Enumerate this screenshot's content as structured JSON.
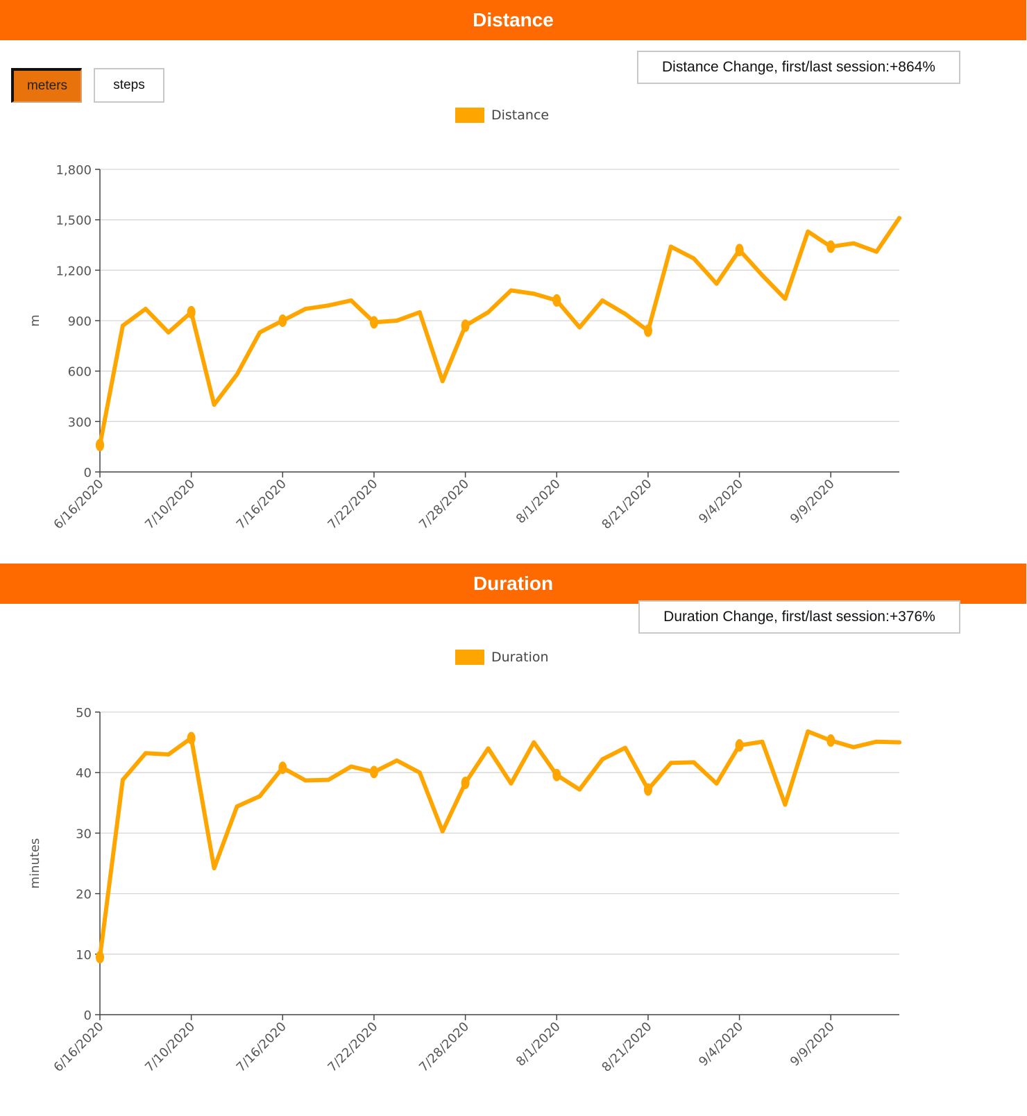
{
  "colors": {
    "header": "#ff6a00",
    "line": "#ffa500",
    "button_active": "#e8720c",
    "grid": "#d6d6d6",
    "axis": "#444444"
  },
  "distance": {
    "header": "Distance",
    "change_text": "Distance Change, first/last session:+864%",
    "unit_buttons": [
      {
        "label": "meters",
        "active": true
      },
      {
        "label": "steps",
        "active": false
      }
    ]
  },
  "duration": {
    "header": "Duration",
    "change_text": "Duration Change, first/last session:+376%"
  },
  "chart_data": [
    {
      "type": "line",
      "legend": "Distance",
      "ylabel": "m",
      "ylim": [
        0,
        1800
      ],
      "yticks": [
        "0",
        "300",
        "600",
        "900",
        "1,200",
        "1,500",
        "1,800"
      ],
      "xtick_labels": [
        "6/16/2020",
        "7/10/2020",
        "7/16/2020",
        "7/22/2020",
        "7/28/2020",
        "8/1/2020",
        "8/21/2020",
        "9/4/2020",
        "9/9/2020"
      ],
      "grid": true,
      "series": [
        {
          "name": "Distance",
          "values": [
            160,
            870,
            970,
            830,
            950,
            400,
            580,
            830,
            900,
            970,
            990,
            1020,
            890,
            900,
            950,
            540,
            870,
            950,
            1080,
            1060,
            1020,
            860,
            1020,
            940,
            840,
            1340,
            1270,
            1120,
            1320,
            1170,
            1030,
            1430,
            1340,
            1360,
            1310,
            1510
          ]
        }
      ]
    },
    {
      "type": "line",
      "legend": "Duration",
      "ylabel": "minutes",
      "ylim": [
        0,
        50
      ],
      "yticks": [
        "0",
        "10",
        "20",
        "30",
        "40",
        "50"
      ],
      "xtick_labels": [
        "6/16/2020",
        "7/10/2020",
        "7/16/2020",
        "7/22/2020",
        "7/28/2020",
        "8/1/2020",
        "8/21/2020",
        "9/4/2020",
        "9/9/2020"
      ],
      "grid": true,
      "series": [
        {
          "name": "Duration",
          "values": [
            9.5,
            38.8,
            43.2,
            43.0,
            45.7,
            24.2,
            34.4,
            36.1,
            40.8,
            38.7,
            38.8,
            41.0,
            40.1,
            42.0,
            40.0,
            30.3,
            38.3,
            44.0,
            38.2,
            45.0,
            39.6,
            37.2,
            42.2,
            44.1,
            37.2,
            41.6,
            41.7,
            38.2,
            44.5,
            45.1,
            34.7,
            46.8,
            45.3,
            44.2,
            45.1,
            45.0
          ]
        }
      ]
    }
  ]
}
